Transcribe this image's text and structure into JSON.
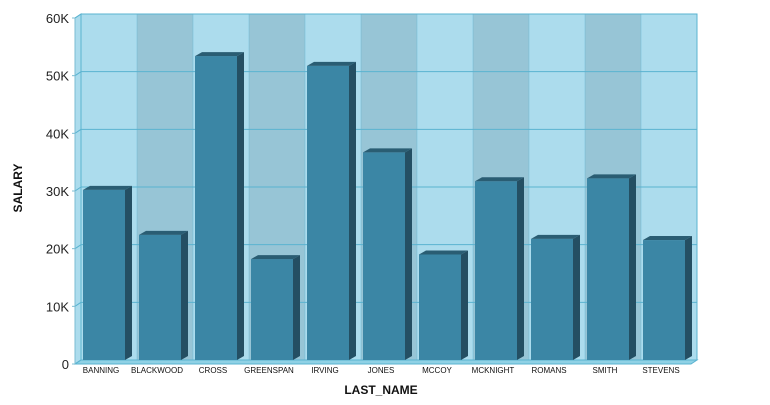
{
  "chart_data": {
    "type": "bar",
    "title": "",
    "xlabel": "LAST_NAME",
    "ylabel": "SALARY",
    "ylim": [
      0,
      60000
    ],
    "yticks": [
      {
        "value": 0,
        "label": "0"
      },
      {
        "value": 10000,
        "label": "10K"
      },
      {
        "value": 20000,
        "label": "20K"
      },
      {
        "value": 30000,
        "label": "30K"
      },
      {
        "value": 40000,
        "label": "40K"
      },
      {
        "value": 50000,
        "label": "50K"
      },
      {
        "value": 60000,
        "label": "60K"
      }
    ],
    "categories": [
      "BANNING",
      "BLACKWOOD",
      "CROSS",
      "GREENSPAN",
      "IRVING",
      "JONES",
      "MCCOY",
      "MCKNIGHT",
      "ROMANS",
      "SMITH",
      "STEVENS"
    ],
    "values": [
      29500,
      21700,
      52700,
      17500,
      51000,
      36000,
      18300,
      31000,
      21000,
      31500,
      20800
    ],
    "grid": true,
    "colors": {
      "bar_front": "#3b86a5",
      "bar_side": "#244f63",
      "bar_top": "#2a5d73",
      "band_light": "#acdced",
      "band_dark": "#97c5d6",
      "grid": "#5ab3d0",
      "floor": "#8fd1e5"
    }
  }
}
